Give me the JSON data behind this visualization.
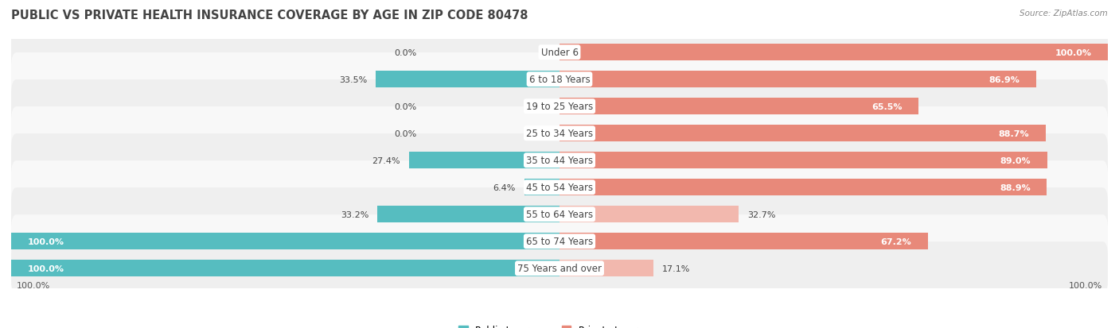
{
  "title": "PUBLIC VS PRIVATE HEALTH INSURANCE COVERAGE BY AGE IN ZIP CODE 80478",
  "source": "Source: ZipAtlas.com",
  "categories": [
    "Under 6",
    "6 to 18 Years",
    "19 to 25 Years",
    "25 to 34 Years",
    "35 to 44 Years",
    "45 to 54 Years",
    "55 to 64 Years",
    "65 to 74 Years",
    "75 Years and over"
  ],
  "public_values": [
    0.0,
    33.5,
    0.0,
    0.0,
    27.4,
    6.4,
    33.2,
    100.0,
    100.0
  ],
  "private_values": [
    100.0,
    86.9,
    65.5,
    88.7,
    89.0,
    88.9,
    32.7,
    67.2,
    17.1
  ],
  "public_color": "#56BDC0",
  "private_color_dark": "#E8897A",
  "private_color_light": "#F2B8AE",
  "row_bg_even": "#EFEFEF",
  "row_bg_odd": "#F8F8F8",
  "title_color": "#444444",
  "source_color": "#888888",
  "label_dark_color": "#444444",
  "label_white_color": "#FFFFFF",
  "center_label_bg": "#FFFFFF",
  "total_width": 100.0,
  "title_fontsize": 10.5,
  "bar_label_fontsize": 8.0,
  "cat_label_fontsize": 8.5,
  "legend_fontsize": 8.5,
  "footer_fontsize": 8.0
}
